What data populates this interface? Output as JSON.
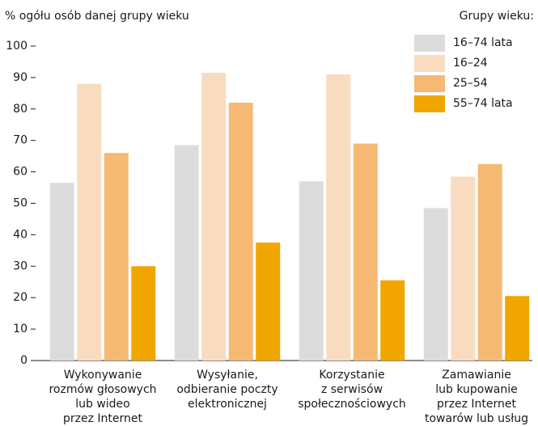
{
  "chart_data": {
    "type": "bar",
    "y_label": "% ogółu osób danej grupy wieku",
    "legend_title": "Grupy wieku:",
    "legend": "top-right",
    "categories": [
      [
        "Wykonywanie",
        "rozmów głosowych",
        "lub wideo",
        "przez Internet"
      ],
      [
        "Wysyłanie,",
        "odbieranie poczty",
        "elektronicznej"
      ],
      [
        "Korzystanie",
        "z serwisów",
        "społecznościowych"
      ],
      [
        "Zamawianie",
        "lub kupowanie",
        "przez Internet",
        "towarów lub usług"
      ]
    ],
    "series": [
      {
        "name": "16–74 lata",
        "color": "#dcdcdc",
        "values": [
          56.5,
          68.5,
          57,
          48.5
        ]
      },
      {
        "name": "16–24",
        "color": "#f9dcc0",
        "values": [
          88,
          91.5,
          91,
          58.5
        ]
      },
      {
        "name": "25–54",
        "color": "#f5b974",
        "values": [
          66,
          82,
          69,
          62.5
        ]
      },
      {
        "name": "55–74 lata",
        "color": "#f0a500",
        "values": [
          30,
          37.5,
          25.5,
          20.5
        ]
      }
    ],
    "ylim": [
      0,
      100
    ],
    "yticks": [
      0,
      10,
      20,
      30,
      40,
      50,
      60,
      70,
      80,
      90,
      100
    ]
  }
}
